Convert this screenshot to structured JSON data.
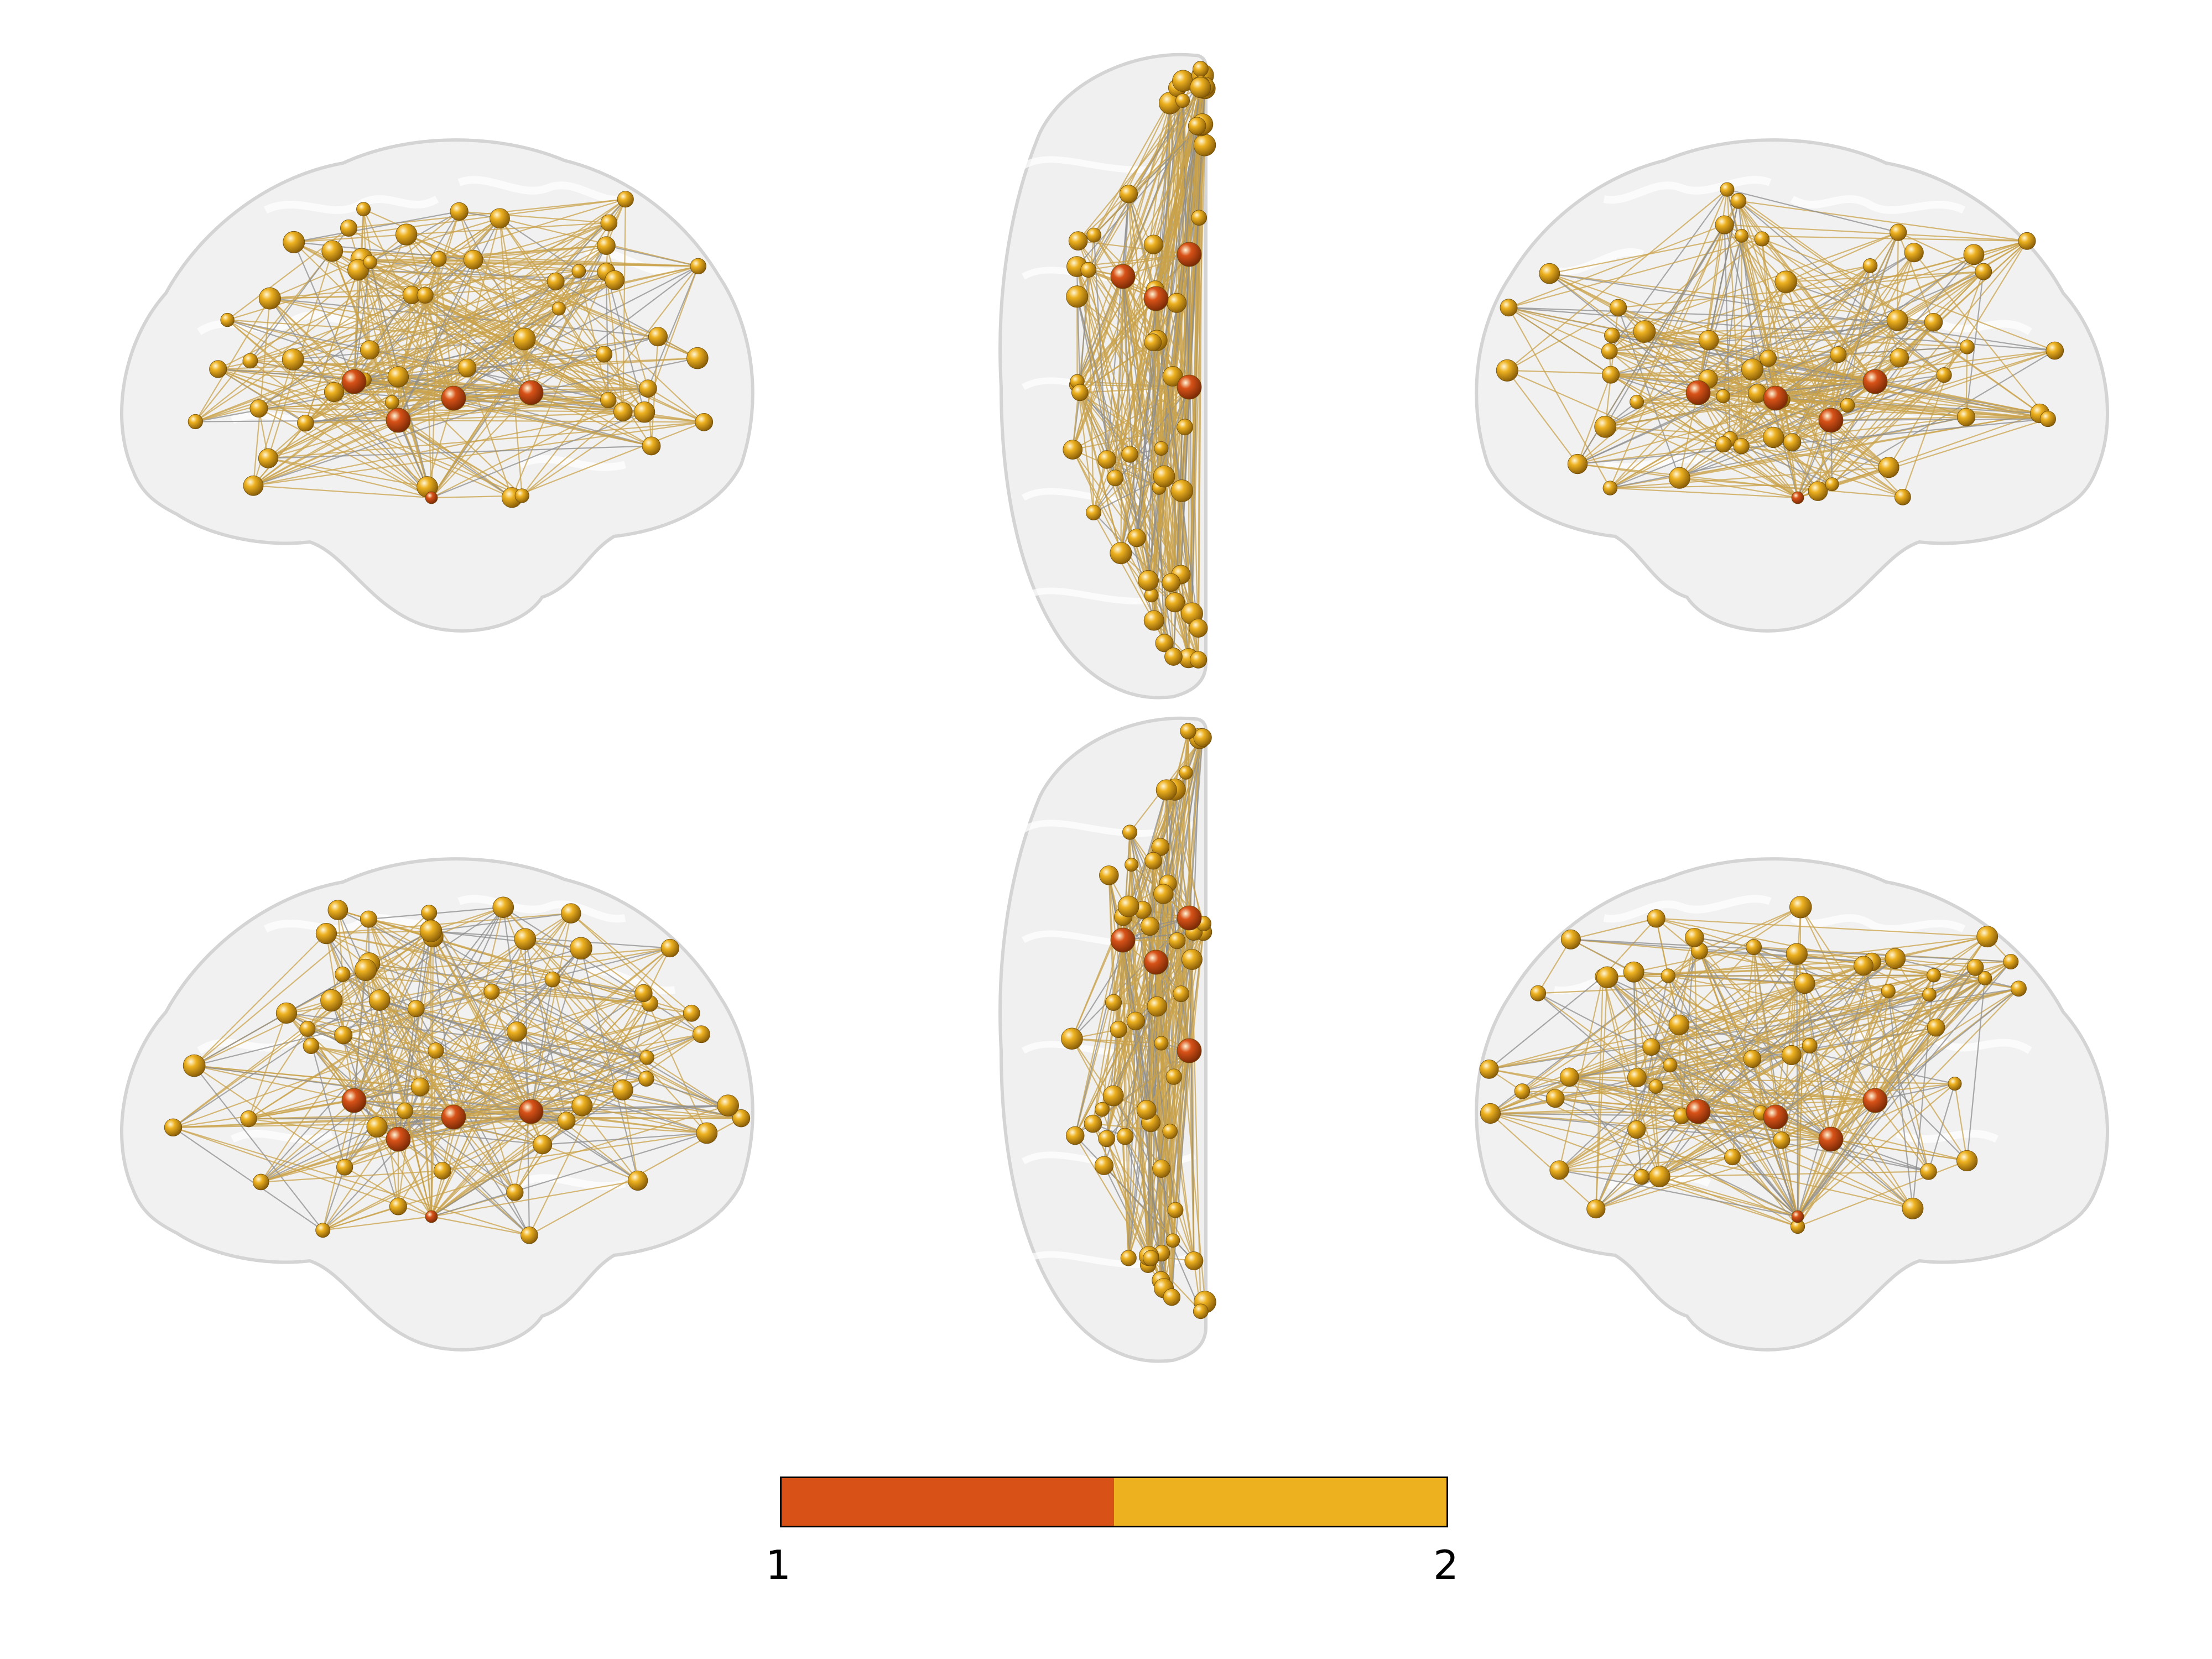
{
  "figure": {
    "views": [
      {
        "id": "sagittal-left-top",
        "kind": "sagittal"
      },
      {
        "id": "axial-top",
        "kind": "axial"
      },
      {
        "id": "sagittal-right-top",
        "kind": "sagittal"
      },
      {
        "id": "sagittal-left-bottom",
        "kind": "sagittal"
      },
      {
        "id": "axial-bottom",
        "kind": "axial"
      },
      {
        "id": "sagittal-right-bottom",
        "kind": "sagittal"
      }
    ],
    "node_colors": {
      "module_1": "#d85218",
      "module_2": "#edb120"
    },
    "edge_colors": [
      "#c9a24a",
      "#8c8c8c"
    ],
    "brain_color": "#e6e6e6"
  },
  "colorbar": {
    "ticks": [
      "1",
      "2"
    ],
    "colors": [
      "#d85218",
      "#edb120"
    ]
  }
}
